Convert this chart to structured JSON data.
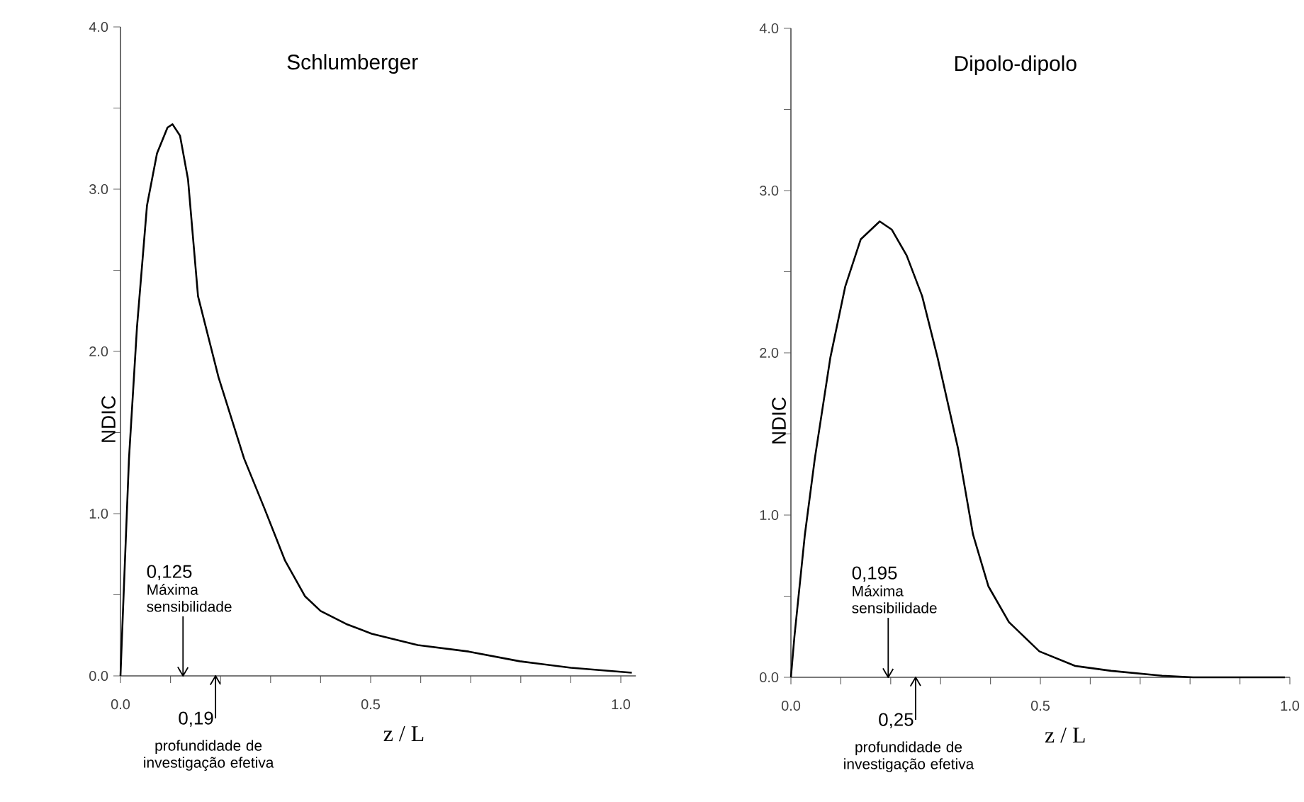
{
  "chart_data": [
    {
      "type": "line",
      "title": "Schlumberger",
      "xlabel": "z / L",
      "ylabel": "NDIC",
      "series": [
        {
          "color": "#000000",
          "x": [
            0,
            0.005,
            0.017,
            0.033,
            0.053,
            0.073,
            0.094,
            0.104,
            0.119,
            0.135,
            0.155,
            0.196,
            0.247,
            0.288,
            0.329,
            0.369,
            0.4,
            0.451,
            0.502,
            0.594,
            0.696,
            0.798,
            0.9,
            1.022
          ],
          "values": [
            0,
            0.4,
            1.34,
            2.15,
            2.9,
            3.22,
            3.38,
            3.4,
            3.33,
            3.06,
            2.34,
            1.84,
            1.34,
            1.03,
            0.71,
            0.49,
            0.4,
            0.32,
            0.26,
            0.19,
            0.15,
            0.09,
            0.05,
            0.02
          ]
        }
      ],
      "xlim": [
        0,
        1.03
      ],
      "ylim": [
        0,
        4
      ],
      "xticks": [
        {
          "value": 0,
          "label": "0.0"
        },
        {
          "value": 0.1,
          "label": null
        },
        {
          "value": 0.2,
          "label": null
        },
        {
          "value": 0.3,
          "label": null
        },
        {
          "value": 0.4,
          "label": null
        },
        {
          "value": 0.5,
          "label": "0.5"
        },
        {
          "value": 0.6,
          "label": null
        },
        {
          "value": 0.7,
          "label": null
        },
        {
          "value": 0.8,
          "label": null
        },
        {
          "value": 0.9,
          "label": null
        },
        {
          "value": 1,
          "label": "1.0"
        }
      ],
      "yticks": [
        {
          "value": 0,
          "label": "0.0"
        },
        {
          "value": 0.5,
          "label": null
        },
        {
          "value": 1,
          "label": "1.0"
        },
        {
          "value": 1.5,
          "label": null
        },
        {
          "value": 2,
          "label": "2.0"
        },
        {
          "value": 2.5,
          "label": null
        },
        {
          "value": 3,
          "label": "3.0"
        },
        {
          "value": 3.5,
          "label": null
        },
        {
          "value": 4,
          "label": "4.0"
        }
      ],
      "ref_lines": [
        {
          "axis": "x",
          "value": 0.125,
          "label": "0,125"
        },
        {
          "axis": "x",
          "value": 0.19,
          "label": "0,19"
        }
      ],
      "annotations": [
        "Máxima sensibilidade",
        "profundidade de investigação efetiva"
      ],
      "grid": false,
      "line_style": "solid",
      "marker": "none"
    },
    {
      "type": "line",
      "title": "Dipolo-dipolo",
      "xlabel": "z / L",
      "ylabel": "NDIC",
      "series": [
        {
          "color": "#000000",
          "x": [
            0,
            0.007,
            0.028,
            0.048,
            0.079,
            0.109,
            0.14,
            0.178,
            0.202,
            0.232,
            0.263,
            0.294,
            0.335,
            0.365,
            0.396,
            0.437,
            0.498,
            0.57,
            0.642,
            0.744,
            0.806,
            0.99
          ],
          "values": [
            0,
            0.25,
            0.88,
            1.35,
            1.97,
            2.41,
            2.7,
            2.81,
            2.76,
            2.6,
            2.35,
            1.97,
            1.41,
            0.88,
            0.56,
            0.34,
            0.16,
            0.07,
            0.04,
            0.01,
            0,
            0
          ]
        }
      ],
      "xlim": [
        0,
        1.0
      ],
      "ylim": [
        0,
        4
      ],
      "xticks": [
        {
          "value": 0,
          "label": "0.0"
        },
        {
          "value": 0.1,
          "label": null
        },
        {
          "value": 0.2,
          "label": null
        },
        {
          "value": 0.3,
          "label": null
        },
        {
          "value": 0.4,
          "label": null
        },
        {
          "value": 0.5,
          "label": "0.5"
        },
        {
          "value": 0.6,
          "label": null
        },
        {
          "value": 0.7,
          "label": null
        },
        {
          "value": 0.8,
          "label": null
        },
        {
          "value": 0.9,
          "label": null
        },
        {
          "value": 1,
          "label": "1.0"
        }
      ],
      "yticks": [
        {
          "value": 0,
          "label": "0.0"
        },
        {
          "value": 0.5,
          "label": null
        },
        {
          "value": 1,
          "label": "1.0"
        },
        {
          "value": 1.5,
          "label": null
        },
        {
          "value": 2,
          "label": "2.0"
        },
        {
          "value": 2.5,
          "label": null
        },
        {
          "value": 3,
          "label": "3.0"
        },
        {
          "value": 3.5,
          "label": null
        },
        {
          "value": 4,
          "label": "4.0"
        }
      ],
      "ref_lines": [
        {
          "axis": "x",
          "value": 0.195,
          "label": "0,195"
        },
        {
          "axis": "x",
          "value": 0.25,
          "label": "0,25"
        }
      ],
      "annotations": [
        "Máxima sensibilidade",
        "profundidade de investigação efetiva"
      ],
      "grid": false,
      "line_style": "solid",
      "marker": "none"
    }
  ]
}
